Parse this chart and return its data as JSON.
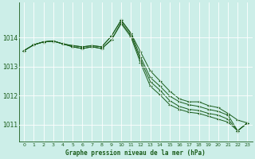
{
  "title": "Graphe pression niveau de la mer (hPa)",
  "background_color": "#cceee8",
  "grid_color": "#aadddd",
  "line_color": "#1a5c1a",
  "xlim": [
    -0.5,
    23.5
  ],
  "ylim": [
    1010.4,
    1015.2
  ],
  "yticks": [
    1011,
    1012,
    1013,
    1014
  ],
  "xtick_labels": [
    "0",
    "1",
    "2",
    "3",
    "4",
    "5",
    "6",
    "7",
    "8",
    "9",
    "10",
    "11",
    "12",
    "13",
    "14",
    "15",
    "16",
    "17",
    "18",
    "19",
    "20",
    "21",
    "22",
    "23"
  ],
  "series": [
    [
      1013.55,
      1013.75,
      1013.85,
      1013.88,
      1013.78,
      1013.72,
      1013.68,
      1013.72,
      1013.68,
      1014.05,
      1014.6,
      1014.15,
      1013.5,
      1012.85,
      1012.5,
      1012.15,
      1011.88,
      1011.78,
      1011.78,
      1011.65,
      1011.58,
      1011.38,
      1011.15,
      1011.05
    ],
    [
      1013.55,
      1013.75,
      1013.85,
      1013.88,
      1013.78,
      1013.72,
      1013.68,
      1013.72,
      1013.68,
      1014.05,
      1014.6,
      1014.15,
      1013.32,
      1012.62,
      1012.32,
      1011.98,
      1011.78,
      1011.68,
      1011.62,
      1011.52,
      1011.45,
      1011.32,
      1010.78,
      1011.05
    ],
    [
      1013.55,
      1013.75,
      1013.85,
      1013.88,
      1013.78,
      1013.68,
      1013.62,
      1013.68,
      1013.62,
      1013.92,
      1014.52,
      1014.08,
      1013.22,
      1012.48,
      1012.18,
      1011.82,
      1011.62,
      1011.52,
      1011.48,
      1011.38,
      1011.32,
      1011.18,
      1010.78,
      1011.05
    ],
    [
      1013.55,
      1013.75,
      1013.85,
      1013.88,
      1013.78,
      1013.68,
      1013.62,
      1013.68,
      1013.62,
      1013.92,
      1014.48,
      1014.02,
      1013.12,
      1012.32,
      1012.02,
      1011.68,
      1011.52,
      1011.42,
      1011.38,
      1011.28,
      1011.18,
      1011.08,
      1010.78,
      1011.05
    ]
  ]
}
